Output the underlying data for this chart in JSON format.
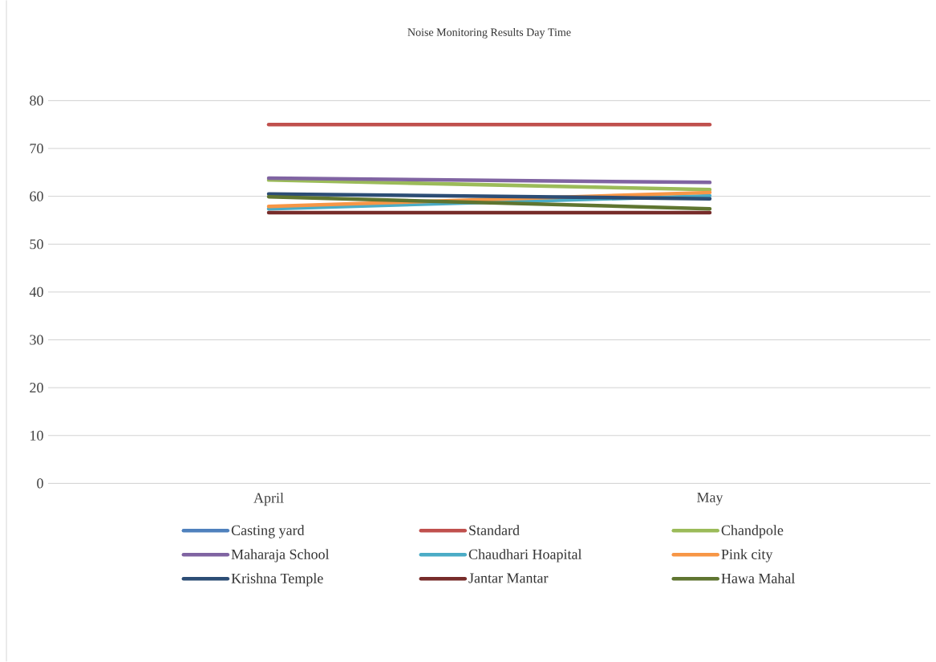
{
  "chart_data": {
    "type": "line",
    "title": "Noise Monitoring Results Day Time",
    "categories": [
      "April",
      "May"
    ],
    "series": [
      {
        "name": "Casting yard",
        "color": "#4f81bd",
        "values": [
          null,
          null
        ]
      },
      {
        "name": "Standard",
        "color": "#c0504d",
        "values": [
          75,
          75
        ]
      },
      {
        "name": "Chandpole",
        "color": "#9bbb59",
        "values": [
          63.4,
          61.4
        ]
      },
      {
        "name": "Maharaja School",
        "color": "#8064a2",
        "values": [
          63.8,
          62.9
        ]
      },
      {
        "name": "Chaudhari Hoapital",
        "color": "#4bacc6",
        "values": [
          57.4,
          60.1
        ]
      },
      {
        "name": "Pink city",
        "color": "#f79646",
        "values": [
          57.9,
          60.8
        ]
      },
      {
        "name": "Krishna Temple",
        "color": "#2c4d75",
        "values": [
          60.5,
          59.5
        ]
      },
      {
        "name": "Jantar Mantar",
        "color": "#772c2a",
        "values": [
          56.6,
          56.6
        ]
      },
      {
        "name": "Hawa Mahal",
        "color": "#5f7530",
        "values": [
          59.9,
          57.4
        ]
      }
    ],
    "ylim": [
      0,
      80
    ],
    "yticks": [
      0,
      10,
      20,
      30,
      40,
      50,
      60,
      70,
      80
    ],
    "grid": "y",
    "legend": "bottom"
  }
}
